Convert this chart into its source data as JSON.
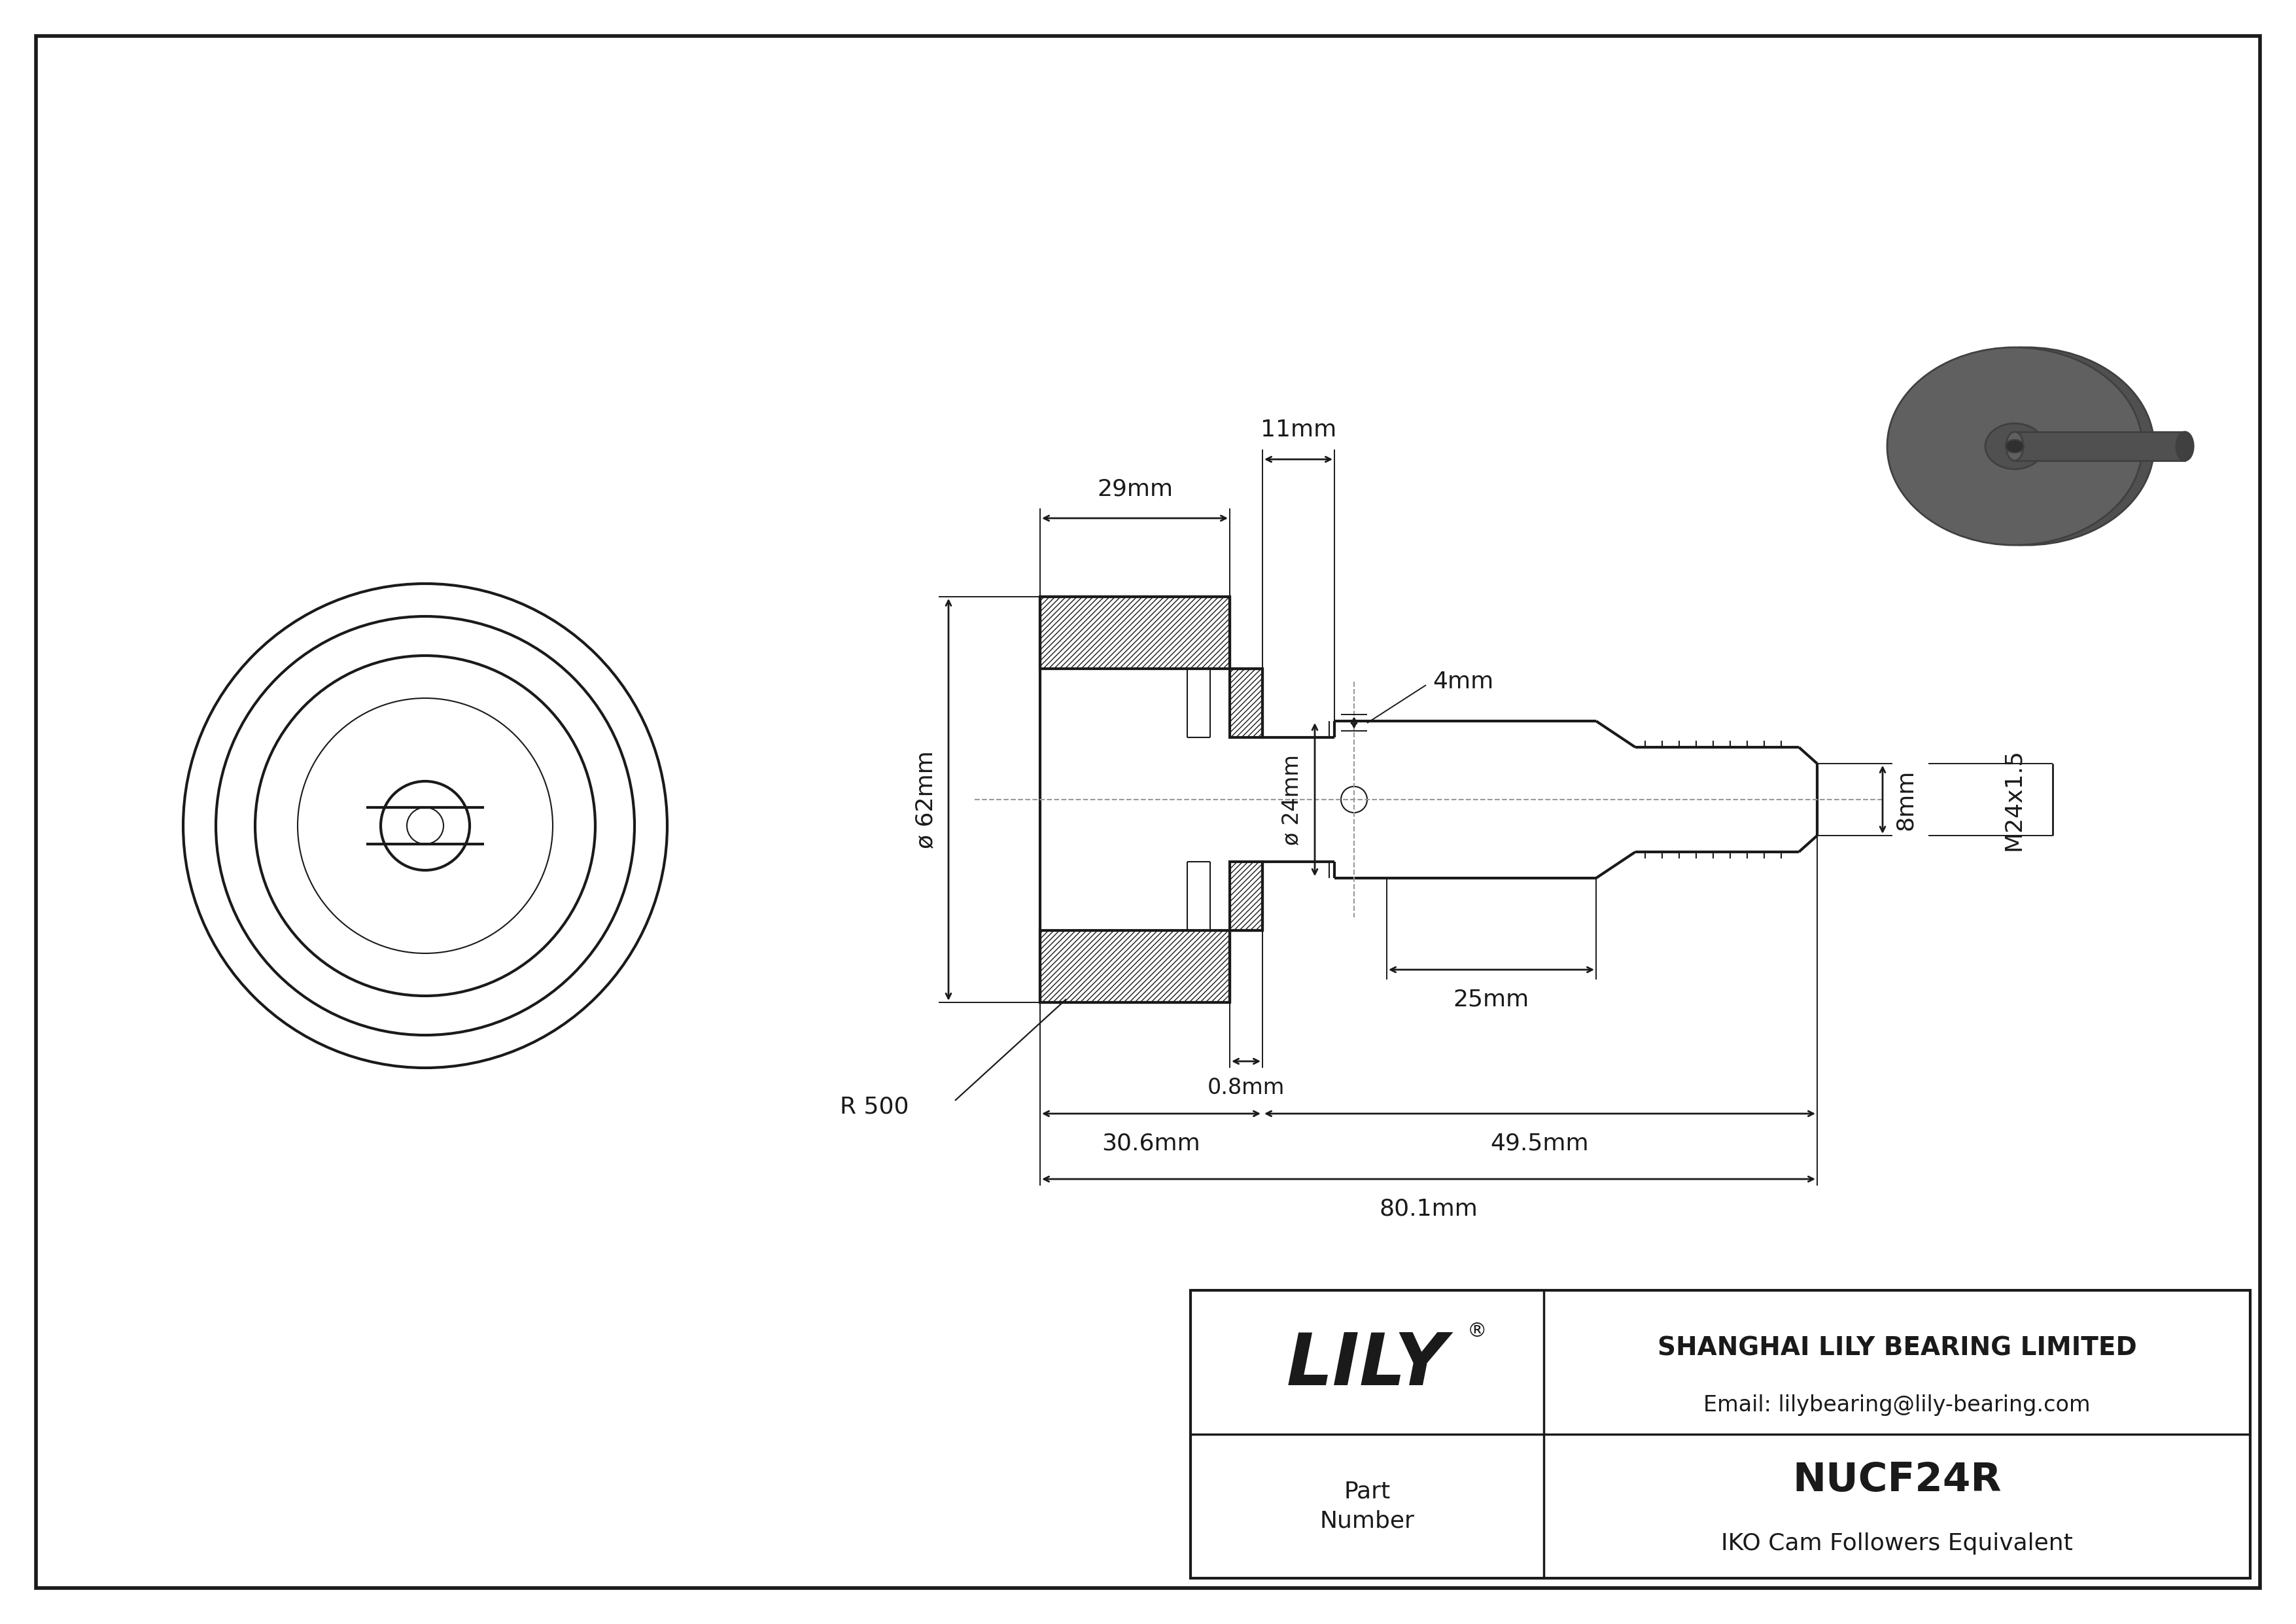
{
  "bg_color": "#ffffff",
  "line_color": "#1a1a1a",
  "dim_color": "#1a1a1a",
  "title_box": {
    "lily_text": "LILY",
    "registered": "®",
    "company": "SHANGHAI LILY BEARING LIMITED",
    "email": "Email: lilybearing@lily-bearing.com",
    "part_label": "Part\nNumber",
    "part_number": "NUCF24R",
    "equivalent": "IKO Cam Followers Equivalent"
  },
  "dims": {
    "d62": "ø 62mm",
    "d24": "ø 24mm",
    "h29": "29mm",
    "h11": "11mm",
    "h4": "4mm",
    "h8": "8mm",
    "m24": "M24x1.5",
    "h25": "25mm",
    "w30_6": "30.6mm",
    "w49_5": "49.5mm",
    "w80_1": "80.1mm",
    "w0_8": "0.8mm",
    "r500": "R 500"
  },
  "iso_color": "#606060",
  "iso_edge": "#404040"
}
